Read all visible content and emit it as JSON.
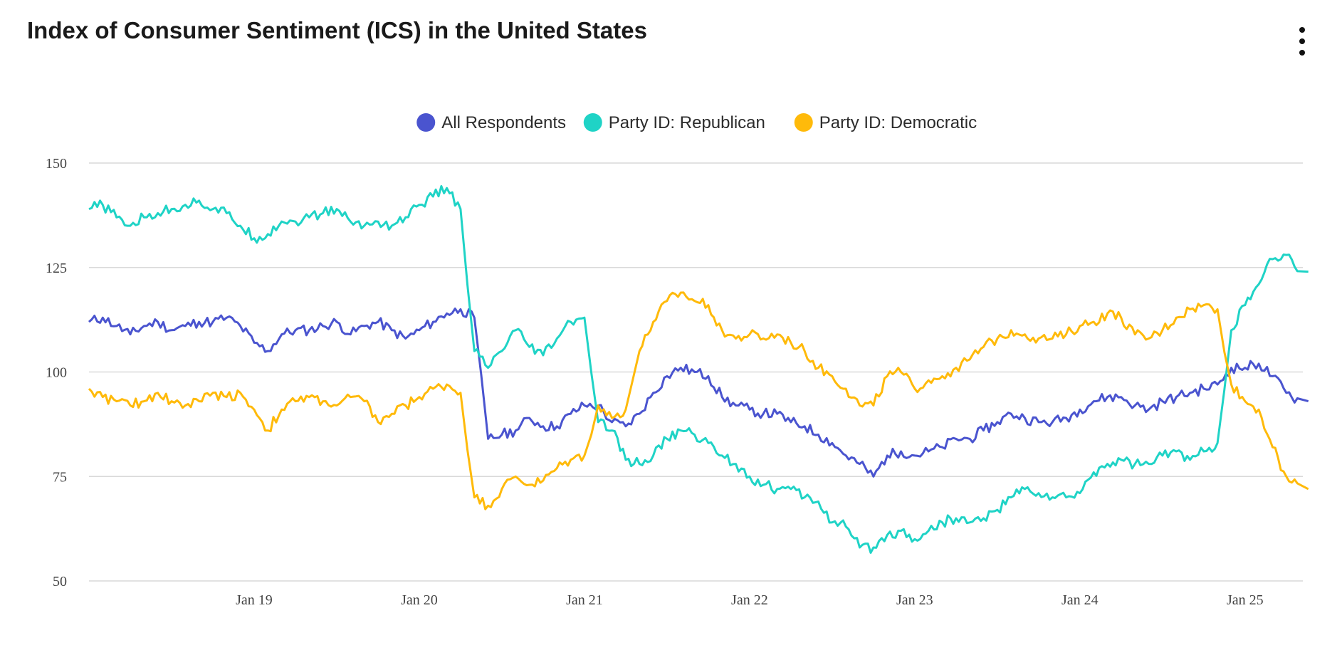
{
  "header": {
    "title": "Index of Consumer Sentiment (ICS) in the United States",
    "menu_icon": "more-vertical-icon"
  },
  "chart_data": {
    "type": "line",
    "title": "Index of Consumer Sentiment (ICS) in the United States",
    "xlabel": "",
    "ylabel": "",
    "ylim": [
      50,
      150
    ],
    "yticks": [
      150,
      125,
      100,
      75,
      50
    ],
    "xlim": [
      "2018-01",
      "2025-04"
    ],
    "xticks": [
      {
        "label": "Jan 19",
        "date": "2019-01"
      },
      {
        "label": "Jan 20",
        "date": "2020-01"
      },
      {
        "label": "Jan 21",
        "date": "2021-01"
      },
      {
        "label": "Jan 22",
        "date": "2022-01"
      },
      {
        "label": "Jan 23",
        "date": "2023-01"
      },
      {
        "label": "Jan 24",
        "date": "2024-01"
      },
      {
        "label": "Jan 25",
        "date": "2025-01"
      }
    ],
    "grid": true,
    "legend_position": "top",
    "series": [
      {
        "name": "All Respondents",
        "color": "#4a54cf",
        "points": [
          [
            "2018-01",
            112
          ],
          [
            "2018-02",
            113
          ],
          [
            "2018-03",
            111
          ],
          [
            "2018-04",
            109
          ],
          [
            "2018-05",
            111
          ],
          [
            "2018-06",
            112
          ],
          [
            "2018-07",
            110
          ],
          [
            "2018-08",
            111
          ],
          [
            "2018-09",
            112
          ],
          [
            "2018-10",
            112
          ],
          [
            "2018-11",
            113
          ],
          [
            "2018-12",
            111
          ],
          [
            "2019-01",
            107
          ],
          [
            "2019-02",
            105
          ],
          [
            "2019-03",
            109
          ],
          [
            "2019-04",
            110
          ],
          [
            "2019-05",
            110
          ],
          [
            "2019-06",
            111
          ],
          [
            "2019-07",
            112
          ],
          [
            "2019-08",
            109
          ],
          [
            "2019-09",
            111
          ],
          [
            "2019-10",
            112
          ],
          [
            "2019-11",
            110
          ],
          [
            "2019-12",
            108
          ],
          [
            "2020-01",
            110
          ],
          [
            "2020-02",
            112
          ],
          [
            "2020-03",
            114
          ],
          [
            "2020-04",
            115
          ],
          [
            "2020-05",
            113
          ],
          [
            "2020-06",
            84
          ],
          [
            "2020-07",
            85
          ],
          [
            "2020-08",
            86
          ],
          [
            "2020-09",
            89
          ],
          [
            "2020-10",
            87
          ],
          [
            "2020-11",
            87
          ],
          [
            "2020-12",
            90
          ],
          [
            "2021-01",
            92
          ],
          [
            "2021-02",
            92
          ],
          [
            "2021-03",
            88
          ],
          [
            "2021-04",
            87
          ],
          [
            "2021-05",
            90
          ],
          [
            "2021-06",
            95
          ],
          [
            "2021-07",
            99
          ],
          [
            "2021-08",
            101
          ],
          [
            "2021-09",
            100
          ],
          [
            "2021-10",
            99
          ],
          [
            "2021-11",
            94
          ],
          [
            "2021-12",
            92
          ],
          [
            "2022-01",
            91
          ],
          [
            "2022-02",
            90
          ],
          [
            "2022-03",
            90
          ],
          [
            "2022-04",
            88
          ],
          [
            "2022-05",
            87
          ],
          [
            "2022-06",
            85
          ],
          [
            "2022-07",
            83
          ],
          [
            "2022-08",
            80
          ],
          [
            "2022-09",
            78
          ],
          [
            "2022-10",
            75
          ],
          [
            "2022-11",
            80
          ],
          [
            "2022-12",
            81
          ],
          [
            "2023-01",
            80
          ],
          [
            "2023-02",
            81
          ],
          [
            "2023-03",
            82
          ],
          [
            "2023-04",
            84
          ],
          [
            "2023-05",
            84
          ],
          [
            "2023-06",
            86
          ],
          [
            "2023-07",
            88
          ],
          [
            "2023-08",
            90
          ],
          [
            "2023-09",
            89
          ],
          [
            "2023-10",
            88
          ],
          [
            "2023-11",
            88
          ],
          [
            "2023-12",
            89
          ],
          [
            "2024-01",
            91
          ],
          [
            "2024-02",
            93
          ],
          [
            "2024-03",
            94
          ],
          [
            "2024-04",
            94
          ],
          [
            "2024-05",
            92
          ],
          [
            "2024-06",
            91
          ],
          [
            "2024-07",
            93
          ],
          [
            "2024-08",
            94
          ],
          [
            "2024-09",
            95
          ],
          [
            "2024-10",
            96
          ],
          [
            "2024-11",
            97
          ],
          [
            "2024-12",
            101
          ],
          [
            "2025-01",
            101
          ],
          [
            "2025-02",
            102
          ],
          [
            "2025-03",
            99
          ],
          [
            "2025-04",
            95
          ],
          [
            "2025-05",
            93
          ]
        ]
      },
      {
        "name": "Party ID: Republican",
        "color": "#1fd3c6",
        "points": [
          [
            "2018-01",
            139
          ],
          [
            "2018-02",
            140
          ],
          [
            "2018-03",
            137
          ],
          [
            "2018-04",
            135
          ],
          [
            "2018-05",
            137
          ],
          [
            "2018-06",
            138
          ],
          [
            "2018-07",
            139
          ],
          [
            "2018-08",
            140
          ],
          [
            "2018-09",
            141
          ],
          [
            "2018-10",
            139
          ],
          [
            "2018-11",
            138
          ],
          [
            "2018-12",
            135
          ],
          [
            "2019-01",
            132
          ],
          [
            "2019-02",
            133
          ],
          [
            "2019-03",
            136
          ],
          [
            "2019-04",
            136
          ],
          [
            "2019-05",
            137
          ],
          [
            "2019-06",
            138
          ],
          [
            "2019-07",
            139
          ],
          [
            "2019-08",
            136
          ],
          [
            "2019-09",
            135
          ],
          [
            "2019-10",
            136
          ],
          [
            "2019-11",
            135
          ],
          [
            "2019-12",
            137
          ],
          [
            "2020-01",
            140
          ],
          [
            "2020-02",
            142
          ],
          [
            "2020-03",
            144
          ],
          [
            "2020-04",
            139
          ],
          [
            "2020-05",
            105
          ],
          [
            "2020-06",
            101
          ],
          [
            "2020-07",
            105
          ],
          [
            "2020-08",
            110
          ],
          [
            "2020-09",
            106
          ],
          [
            "2020-10",
            104
          ],
          [
            "2020-11",
            108
          ],
          [
            "2020-12",
            112
          ],
          [
            "2021-01",
            113
          ],
          [
            "2021-02",
            88
          ],
          [
            "2021-03",
            86
          ],
          [
            "2021-04",
            79
          ],
          [
            "2021-05",
            78
          ],
          [
            "2021-06",
            80
          ],
          [
            "2021-07",
            84
          ],
          [
            "2021-08",
            86
          ],
          [
            "2021-09",
            85
          ],
          [
            "2021-10",
            83
          ],
          [
            "2021-11",
            80
          ],
          [
            "2021-12",
            78
          ],
          [
            "2022-01",
            75
          ],
          [
            "2022-02",
            73
          ],
          [
            "2022-03",
            72
          ],
          [
            "2022-04",
            72
          ],
          [
            "2022-05",
            70
          ],
          [
            "2022-06",
            69
          ],
          [
            "2022-07",
            64
          ],
          [
            "2022-08",
            63
          ],
          [
            "2022-09",
            58
          ],
          [
            "2022-10",
            58
          ],
          [
            "2022-11",
            61
          ],
          [
            "2022-12",
            62
          ],
          [
            "2023-01",
            60
          ],
          [
            "2023-02",
            62
          ],
          [
            "2023-03",
            64
          ],
          [
            "2023-04",
            65
          ],
          [
            "2023-05",
            64
          ],
          [
            "2023-06",
            65
          ],
          [
            "2023-07",
            67
          ],
          [
            "2023-08",
            70
          ],
          [
            "2023-09",
            72
          ],
          [
            "2023-10",
            71
          ],
          [
            "2023-11",
            70
          ],
          [
            "2023-12",
            70
          ],
          [
            "2024-01",
            71
          ],
          [
            "2024-02",
            76
          ],
          [
            "2024-03",
            78
          ],
          [
            "2024-04",
            79
          ],
          [
            "2024-05",
            78
          ],
          [
            "2024-06",
            78
          ],
          [
            "2024-07",
            80
          ],
          [
            "2024-08",
            81
          ],
          [
            "2024-09",
            79
          ],
          [
            "2024-10",
            81
          ],
          [
            "2024-11",
            83
          ],
          [
            "2024-12",
            110
          ],
          [
            "2025-01",
            116
          ],
          [
            "2025-02",
            121
          ],
          [
            "2025-03",
            127
          ],
          [
            "2025-04",
            128
          ],
          [
            "2025-05",
            124
          ]
        ]
      },
      {
        "name": "Party ID: Democratic",
        "color": "#ffba0a",
        "points": [
          [
            "2018-01",
            96
          ],
          [
            "2018-02",
            94
          ],
          [
            "2018-03",
            93
          ],
          [
            "2018-04",
            92
          ],
          [
            "2018-05",
            93
          ],
          [
            "2018-06",
            95
          ],
          [
            "2018-07",
            93
          ],
          [
            "2018-08",
            92
          ],
          [
            "2018-09",
            93
          ],
          [
            "2018-10",
            95
          ],
          [
            "2018-11",
            94
          ],
          [
            "2018-12",
            95
          ],
          [
            "2019-01",
            91
          ],
          [
            "2019-02",
            86
          ],
          [
            "2019-03",
            91
          ],
          [
            "2019-04",
            93
          ],
          [
            "2019-05",
            94
          ],
          [
            "2019-06",
            93
          ],
          [
            "2019-07",
            92
          ],
          [
            "2019-08",
            94
          ],
          [
            "2019-09",
            93
          ],
          [
            "2019-10",
            88
          ],
          [
            "2019-11",
            90
          ],
          [
            "2019-12",
            92
          ],
          [
            "2020-01",
            94
          ],
          [
            "2020-02",
            96
          ],
          [
            "2020-03",
            97
          ],
          [
            "2020-04",
            95
          ],
          [
            "2020-05",
            70
          ],
          [
            "2020-06",
            68
          ],
          [
            "2020-07",
            72
          ],
          [
            "2020-08",
            75
          ],
          [
            "2020-09",
            73
          ],
          [
            "2020-10",
            74
          ],
          [
            "2020-11",
            77
          ],
          [
            "2020-12",
            79
          ],
          [
            "2021-01",
            80
          ],
          [
            "2021-02",
            92
          ],
          [
            "2021-03",
            89
          ],
          [
            "2021-04",
            91
          ],
          [
            "2021-05",
            105
          ],
          [
            "2021-06",
            112
          ],
          [
            "2021-07",
            117
          ],
          [
            "2021-08",
            119
          ],
          [
            "2021-09",
            117
          ],
          [
            "2021-10",
            116
          ],
          [
            "2021-11",
            110
          ],
          [
            "2021-12",
            108
          ],
          [
            "2022-01",
            109
          ],
          [
            "2022-02",
            108
          ],
          [
            "2022-03",
            109
          ],
          [
            "2022-04",
            107
          ],
          [
            "2022-05",
            105
          ],
          [
            "2022-06",
            101
          ],
          [
            "2022-07",
            99
          ],
          [
            "2022-08",
            96
          ],
          [
            "2022-09",
            92
          ],
          [
            "2022-10",
            92
          ],
          [
            "2022-11",
            99
          ],
          [
            "2022-12",
            100
          ],
          [
            "2023-01",
            96
          ],
          [
            "2023-02",
            98
          ],
          [
            "2023-03",
            99
          ],
          [
            "2023-04",
            101
          ],
          [
            "2023-05",
            103
          ],
          [
            "2023-06",
            106
          ],
          [
            "2023-07",
            108
          ],
          [
            "2023-08",
            110
          ],
          [
            "2023-09",
            109
          ],
          [
            "2023-10",
            108
          ],
          [
            "2023-11",
            108
          ],
          [
            "2023-12",
            109
          ],
          [
            "2024-01",
            111
          ],
          [
            "2024-02",
            112
          ],
          [
            "2024-03",
            114
          ],
          [
            "2024-04",
            113
          ],
          [
            "2024-05",
            109
          ],
          [
            "2024-06",
            108
          ],
          [
            "2024-07",
            110
          ],
          [
            "2024-08",
            113
          ],
          [
            "2024-09",
            115
          ],
          [
            "2024-10",
            116
          ],
          [
            "2024-11",
            115
          ],
          [
            "2024-12",
            97
          ],
          [
            "2025-01",
            93
          ],
          [
            "2025-02",
            91
          ],
          [
            "2025-03",
            82
          ],
          [
            "2025-04",
            75
          ],
          [
            "2025-05",
            72
          ]
        ]
      }
    ]
  }
}
